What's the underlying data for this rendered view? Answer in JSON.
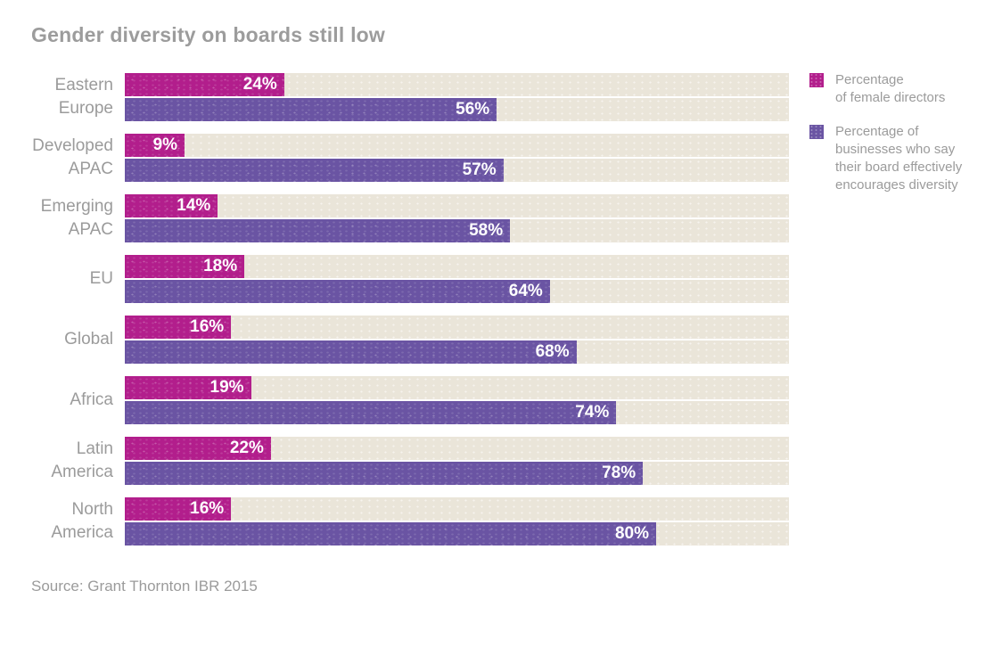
{
  "title": "Gender diversity on boards still low",
  "source": "Source: Grant Thornton IBR 2015",
  "colors": {
    "female": "#b21e8c",
    "board": "#6a54a3",
    "track": "#eae5d9",
    "label_gray": "#9b9b9b",
    "value_text": "#ffffff",
    "background": "#ffffff"
  },
  "legend": [
    {
      "key": "female",
      "color": "#b21e8c",
      "lines": [
        "Percentage",
        "of female directors"
      ]
    },
    {
      "key": "board",
      "color": "#6a54a3",
      "lines": [
        "Percentage of",
        "businesses who say",
        "their board effectively",
        "encourages diversity"
      ]
    }
  ],
  "chart_data": {
    "type": "bar",
    "orientation": "horizontal",
    "title": "Gender diversity on boards still low",
    "categories": [
      "Eastern Europe",
      "Developed APAC",
      "Emerging APAC",
      "EU",
      "Global",
      "Africa",
      "Latin America",
      "North America"
    ],
    "category_label_lines": [
      [
        "Eastern",
        "Europe"
      ],
      [
        "Developed",
        "APAC"
      ],
      [
        "Emerging",
        "APAC"
      ],
      [
        "EU"
      ],
      [
        "Global"
      ],
      [
        "Africa"
      ],
      [
        "Latin",
        "America"
      ],
      [
        "North",
        "America"
      ]
    ],
    "series": [
      {
        "name": "Percentage of female directors",
        "color": "#b21e8c",
        "values": [
          24,
          9,
          14,
          18,
          16,
          19,
          22,
          16
        ]
      },
      {
        "name": "Percentage of businesses who say their board effectively encourages diversity",
        "color": "#6a54a3",
        "values": [
          56,
          57,
          58,
          64,
          68,
          74,
          78,
          80
        ]
      }
    ],
    "value_suffix": "%",
    "xlim": [
      0,
      100
    ],
    "grid": false,
    "legend_position": "right"
  }
}
